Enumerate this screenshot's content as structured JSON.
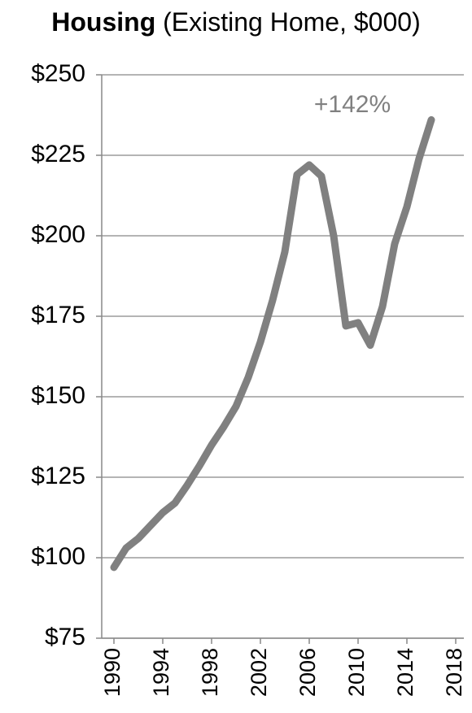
{
  "chart_data": {
    "type": "line",
    "title": "Housing",
    "subtitle": "(Existing Home, $000)",
    "annotation": "+142%",
    "x": [
      1990,
      1991,
      1992,
      1993,
      1994,
      1995,
      1996,
      1997,
      1998,
      1999,
      2000,
      2001,
      2002,
      2003,
      2004,
      2005,
      2006,
      2007,
      2008,
      2009,
      2010,
      2011,
      2012,
      2013,
      2014,
      2015,
      2016
    ],
    "values": [
      97,
      103,
      106,
      110,
      114,
      117,
      122.5,
      128.5,
      135,
      140.7,
      147,
      156,
      167,
      180,
      195,
      219,
      222,
      218.5,
      200,
      172,
      173,
      166,
      178,
      197.5,
      209,
      224,
      236
    ],
    "color": "#808080",
    "xlim": [
      1989,
      2019
    ],
    "xticks": [
      1990,
      1994,
      1998,
      2002,
      2006,
      2010,
      2014,
      2018
    ],
    "ylim": [
      75,
      250
    ],
    "yticks": [
      {
        "value": 75,
        "label": "$75"
      },
      {
        "value": 100,
        "label": "$100"
      },
      {
        "value": 125,
        "label": "$125"
      },
      {
        "value": 150,
        "label": "$150"
      },
      {
        "value": 175,
        "label": "$175"
      },
      {
        "value": 200,
        "label": "$200"
      },
      {
        "value": 225,
        "label": "$225"
      },
      {
        "value": 250,
        "label": "$250"
      }
    ],
    "grid": true
  }
}
